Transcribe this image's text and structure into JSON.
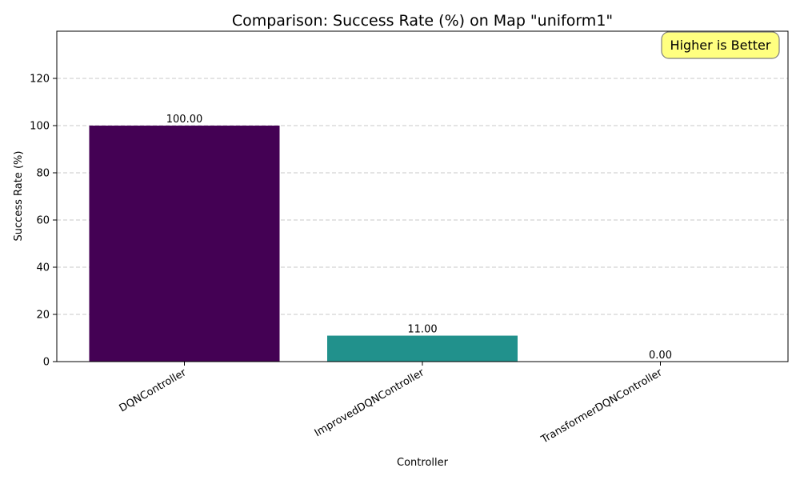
{
  "chart_data": {
    "type": "bar",
    "title": "Comparison: Success Rate (%) on Map \"uniform1\"",
    "xlabel": "Controller",
    "ylabel": "Success Rate (%)",
    "categories": [
      "DQNController",
      "ImprovedDQNController",
      "TransformerDQNController"
    ],
    "values": [
      100.0,
      11.0,
      0.0
    ],
    "value_labels": [
      "100.00",
      "11.00",
      "0.00"
    ],
    "colors": [
      "#440154",
      "#21918c",
      "#fde725"
    ],
    "ylim": [
      0,
      140
    ],
    "yticks": [
      0,
      20,
      40,
      60,
      80,
      100,
      120
    ],
    "grid": "y-dashed",
    "annotation": "Higher is Better",
    "annotation_color": "#ffff80"
  }
}
